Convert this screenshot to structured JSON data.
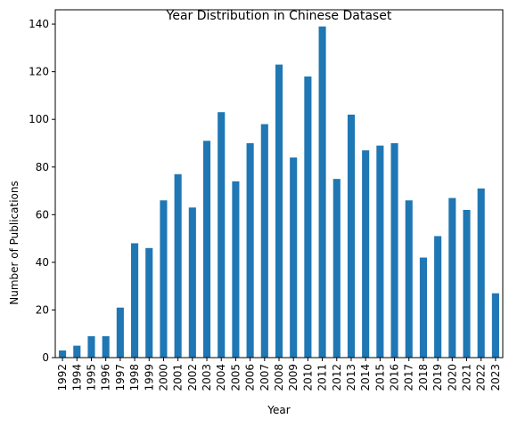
{
  "chart_data": {
    "type": "bar",
    "title": "Year Distribution in Chinese Dataset",
    "xlabel": "Year",
    "ylabel": "Number of Publications",
    "categories": [
      "1992",
      "1994",
      "1995",
      "1996",
      "1997",
      "1998",
      "1999",
      "2000",
      "2001",
      "2002",
      "2003",
      "2004",
      "2005",
      "2006",
      "2007",
      "2008",
      "2009",
      "2010",
      "2011",
      "2012",
      "2013",
      "2014",
      "2015",
      "2016",
      "2017",
      "2018",
      "2019",
      "2020",
      "2021",
      "2022",
      "2023"
    ],
    "values": [
      3,
      5,
      9,
      9,
      21,
      48,
      46,
      66,
      77,
      63,
      91,
      103,
      74,
      90,
      98,
      123,
      84,
      118,
      139,
      75,
      102,
      87,
      89,
      90,
      66,
      42,
      51,
      67,
      62,
      71,
      27
    ],
    "ylim": [
      0,
      146
    ],
    "yticks": [
      "0",
      "20",
      "40",
      "60",
      "80",
      "100",
      "120",
      "140"
    ],
    "grid": false,
    "legend": "none",
    "colors": {
      "bar": "#1f77b4",
      "axis": "#000000"
    }
  }
}
